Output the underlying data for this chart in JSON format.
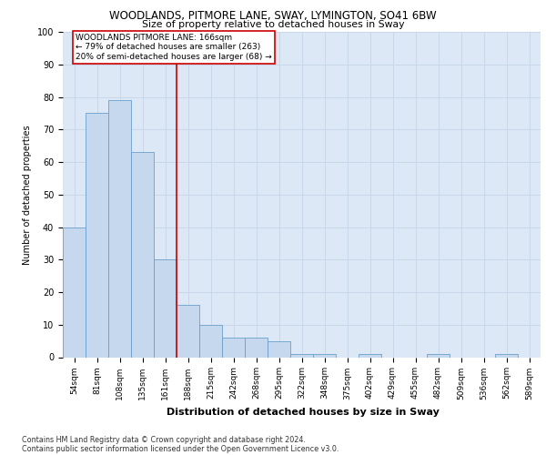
{
  "title1": "WOODLANDS, PITMORE LANE, SWAY, LYMINGTON, SO41 6BW",
  "title2": "Size of property relative to detached houses in Sway",
  "xlabel": "Distribution of detached houses by size in Sway",
  "ylabel": "Number of detached properties",
  "bins": [
    "54sqm",
    "81sqm",
    "108sqm",
    "135sqm",
    "161sqm",
    "188sqm",
    "215sqm",
    "242sqm",
    "268sqm",
    "295sqm",
    "322sqm",
    "348sqm",
    "375sqm",
    "402sqm",
    "429sqm",
    "455sqm",
    "482sqm",
    "509sqm",
    "536sqm",
    "562sqm",
    "589sqm"
  ],
  "values": [
    40,
    75,
    79,
    63,
    30,
    16,
    10,
    6,
    6,
    5,
    1,
    1,
    0,
    1,
    0,
    0,
    1,
    0,
    0,
    1,
    0
  ],
  "bar_color": "#c5d8ee",
  "bar_edge_color": "#6a9fcc",
  "bar_width": 1.0,
  "vline_x": 4.5,
  "vline_color": "#cc0000",
  "annotation_box_text": "WOODLANDS PITMORE LANE: 166sqm\n← 79% of detached houses are smaller (263)\n20% of semi-detached houses are larger (68) →",
  "ylim": [
    0,
    100
  ],
  "yticks": [
    0,
    10,
    20,
    30,
    40,
    50,
    60,
    70,
    80,
    90,
    100
  ],
  "footer1": "Contains HM Land Registry data © Crown copyright and database right 2024.",
  "footer2": "Contains public sector information licensed under the Open Government Licence v3.0.",
  "grid_color": "#c8d8ea",
  "bg_color": "#dce8f5"
}
